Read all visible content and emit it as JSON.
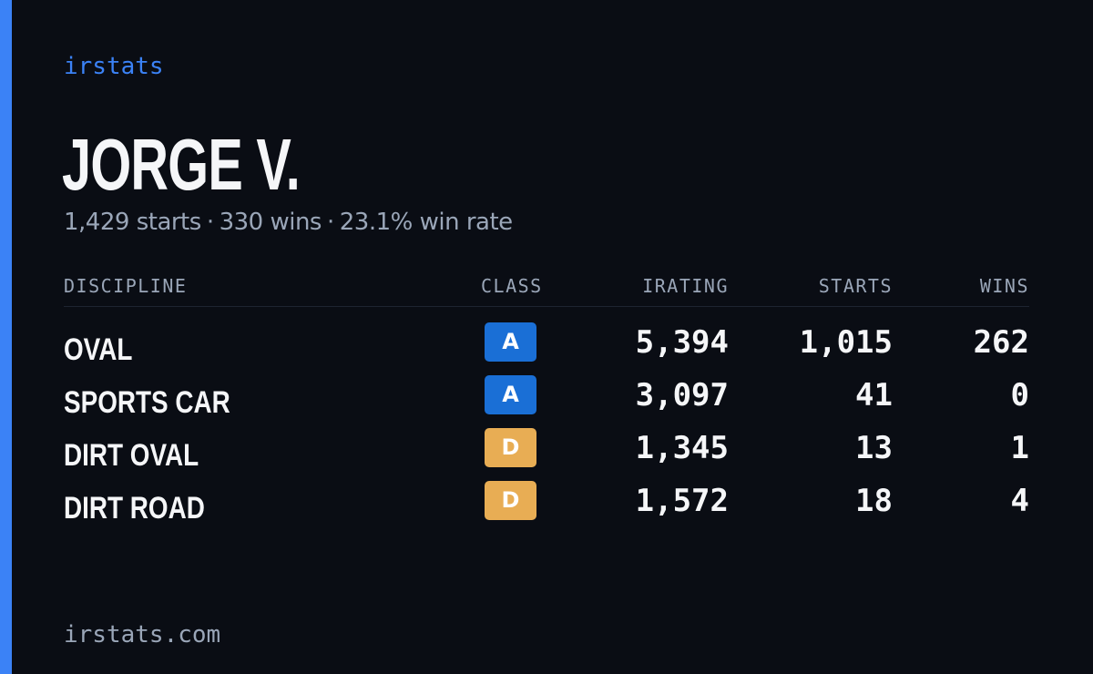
{
  "brand": "irstats",
  "player": {
    "name": "JORGE V."
  },
  "summary": {
    "starts": "1,429 starts",
    "wins": "330 wins",
    "win_rate": "23.1% win rate",
    "separator": "·"
  },
  "colors": {
    "background": "#0a0d14",
    "accent": "#3b82f6",
    "class_a": "#1a6fd6",
    "class_d": "#e8ad54",
    "muted_text": "#9aa6b8"
  },
  "table": {
    "columns": {
      "discipline": "DISCIPLINE",
      "class": "CLASS",
      "irating": "IRATING",
      "starts": "STARTS",
      "wins": "WINS"
    },
    "rows": [
      {
        "discipline": "OVAL",
        "class": "A",
        "irating": "5,394",
        "starts": "1,015",
        "wins": "262"
      },
      {
        "discipline": "SPORTS CAR",
        "class": "A",
        "irating": "3,097",
        "starts": "41",
        "wins": "0"
      },
      {
        "discipline": "DIRT OVAL",
        "class": "D",
        "irating": "1,345",
        "starts": "13",
        "wins": "1"
      },
      {
        "discipline": "DIRT ROAD",
        "class": "D",
        "irating": "1,572",
        "starts": "18",
        "wins": "4"
      }
    ]
  },
  "footer": {
    "domain": "irstats.com"
  }
}
